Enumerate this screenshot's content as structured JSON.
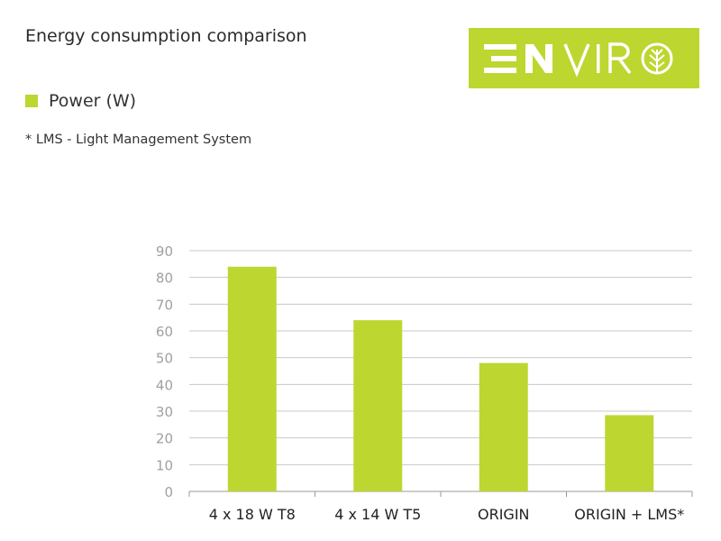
{
  "title": "Energy consumption comparison",
  "legend": {
    "label": "Power (W)"
  },
  "footnote": "* LMS - Light Management System",
  "logo": {
    "text": "ENVIRO",
    "bg_color": "#bed630",
    "fg_color": "#ffffff"
  },
  "colors": {
    "bar": "#bed630",
    "grid": "#c8c8c8",
    "tick_text": "#a0a0a0",
    "category_text": "#222222"
  },
  "chart_data": {
    "type": "bar",
    "categories": [
      "4 x 18 W T8",
      "4 x 14 W T5",
      "ORIGIN",
      "ORIGIN + LMS*"
    ],
    "series": [
      {
        "name": "Power (W)",
        "values": [
          84,
          64,
          48,
          28.5
        ]
      }
    ],
    "ylim": [
      0,
      90
    ],
    "yticks": [
      0,
      10,
      20,
      30,
      40,
      50,
      60,
      70,
      80,
      90
    ],
    "grid": true,
    "legend_position": "top-left",
    "xlabel": "",
    "ylabel": ""
  }
}
